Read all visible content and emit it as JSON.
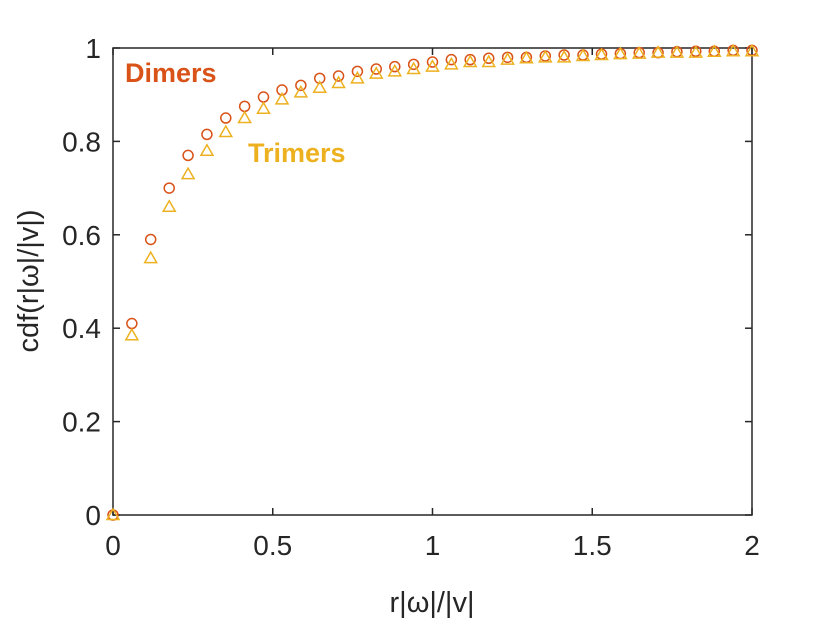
{
  "chart_data": {
    "type": "scatter",
    "xlabel": "r|ω|/|v|",
    "ylabel": "cdf(r|ω|/|v|)",
    "xlim": [
      0,
      2
    ],
    "ylim": [
      0,
      1
    ],
    "x_ticks": [
      "0",
      "0.5",
      "1",
      "1.5",
      "2"
    ],
    "y_ticks": [
      "0",
      "0.2",
      "0.4",
      "0.6",
      "0.8",
      "1"
    ],
    "grid": false,
    "annotations": [
      {
        "text": "Dimers",
        "color": "#D95319"
      },
      {
        "text": "Trimers",
        "color": "#EDB120"
      }
    ],
    "series": [
      {
        "name": "Dimers",
        "marker": "circle",
        "color": "#D95319",
        "x": [
          0,
          0.059,
          0.118,
          0.176,
          0.235,
          0.294,
          0.353,
          0.412,
          0.471,
          0.529,
          0.588,
          0.647,
          0.706,
          0.765,
          0.824,
          0.882,
          0.941,
          1.0,
          1.059,
          1.118,
          1.176,
          1.235,
          1.294,
          1.353,
          1.412,
          1.471,
          1.529,
          1.588,
          1.647,
          1.706,
          1.765,
          1.824,
          1.882,
          1.941,
          2.0
        ],
        "y": [
          0,
          0.41,
          0.59,
          0.7,
          0.77,
          0.815,
          0.85,
          0.875,
          0.895,
          0.91,
          0.92,
          0.935,
          0.94,
          0.95,
          0.955,
          0.96,
          0.965,
          0.97,
          0.975,
          0.975,
          0.978,
          0.98,
          0.98,
          0.983,
          0.985,
          0.985,
          0.987,
          0.988,
          0.99,
          0.99,
          0.992,
          0.993,
          0.993,
          0.995,
          0.995
        ]
      },
      {
        "name": "Trimers",
        "marker": "triangle",
        "color": "#EDB120",
        "x": [
          0,
          0.059,
          0.118,
          0.176,
          0.235,
          0.294,
          0.353,
          0.412,
          0.471,
          0.529,
          0.588,
          0.647,
          0.706,
          0.765,
          0.824,
          0.882,
          0.941,
          1.0,
          1.059,
          1.118,
          1.176,
          1.235,
          1.294,
          1.353,
          1.412,
          1.471,
          1.529,
          1.588,
          1.647,
          1.706,
          1.765,
          1.824,
          1.882,
          1.941,
          2.0
        ],
        "y": [
          0,
          0.385,
          0.55,
          0.66,
          0.73,
          0.78,
          0.82,
          0.85,
          0.87,
          0.89,
          0.905,
          0.915,
          0.925,
          0.935,
          0.945,
          0.95,
          0.955,
          0.96,
          0.965,
          0.97,
          0.97,
          0.975,
          0.978,
          0.98,
          0.98,
          0.983,
          0.985,
          0.987,
          0.988,
          0.99,
          0.99,
          0.99,
          0.992,
          0.993,
          0.993
        ]
      }
    ]
  }
}
